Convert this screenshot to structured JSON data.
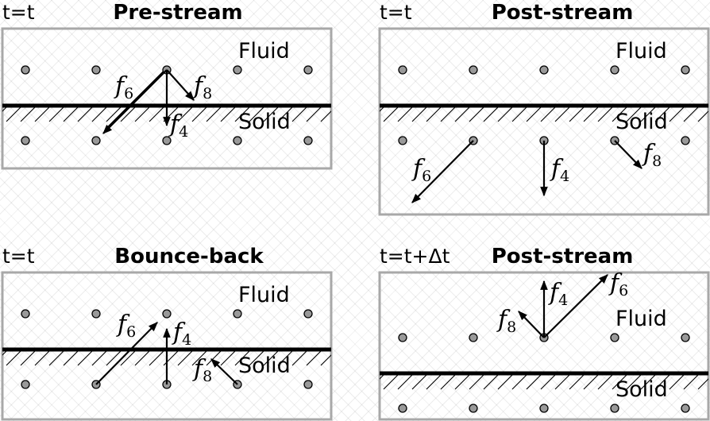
{
  "panels": [
    {
      "time": "t=t",
      "title": "Pre-stream",
      "fluid": "Fluid",
      "solid": "Solid",
      "f": [
        {
          "main": "f",
          "sub": "6"
        },
        {
          "main": "f",
          "sub": "8"
        },
        {
          "main": "f",
          "sub": "4"
        }
      ]
    },
    {
      "time": "t=t",
      "title": "Post-stream",
      "fluid": "Fluid",
      "solid": "Solid",
      "f": [
        {
          "main": "f",
          "sub": "6"
        },
        {
          "main": "f",
          "sub": "4"
        },
        {
          "main": "f",
          "sub": "8"
        }
      ]
    },
    {
      "time": "t=t",
      "title": "Bounce-back",
      "fluid": "Fluid",
      "solid": "Solid",
      "f": [
        {
          "main": "f",
          "sub": "6"
        },
        {
          "main": "f",
          "sub": "4"
        },
        {
          "main": "f",
          "sub": "8"
        }
      ]
    },
    {
      "time": "t=t+Δt",
      "title": "Post-stream",
      "fluid": "Fluid",
      "solid": "Solid",
      "f": [
        {
          "main": "f",
          "sub": "4"
        },
        {
          "main": "f",
          "sub": "6"
        },
        {
          "main": "f",
          "sub": "8"
        }
      ]
    }
  ]
}
